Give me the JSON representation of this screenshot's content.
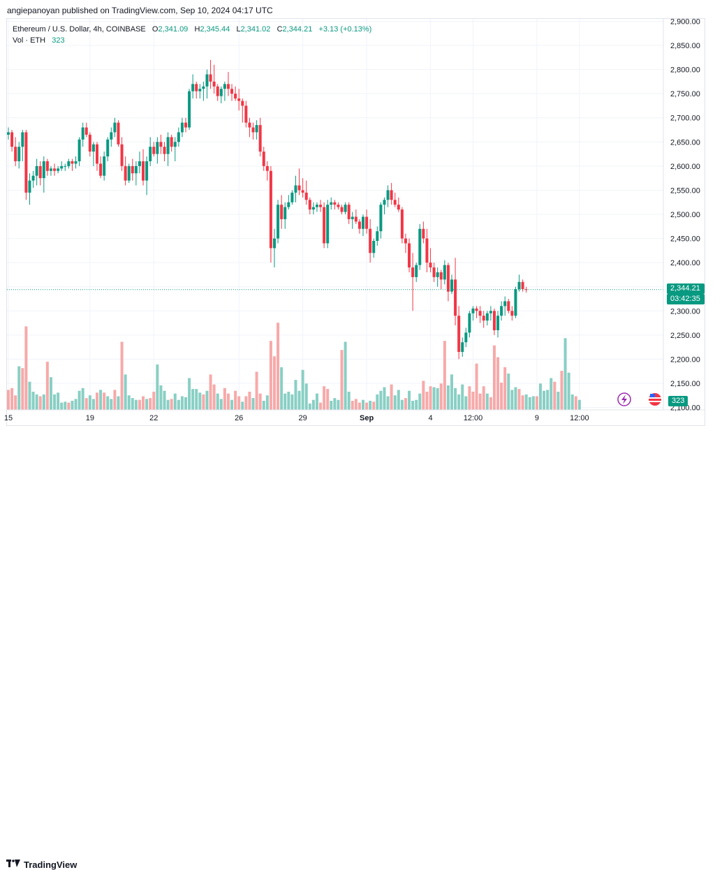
{
  "publisher_line": "angiepanoyan published on TradingView.com, Sep 10, 2024 04:17 UTC",
  "legend": {
    "symbol": "Ethereum / U.S. Dollar, 4h, COINBASE",
    "open_label": "O",
    "open": "2,341.09",
    "high_label": "H",
    "high": "2,345.44",
    "low_label": "L",
    "low": "2,341.02",
    "close_label": "C",
    "close": "2,344.21",
    "change": "+3.13 (+0.13%)",
    "vol_label": "Vol · ETH",
    "vol_value": "323"
  },
  "price_badge": {
    "price": "2,344.21",
    "countdown": "03:42:35"
  },
  "volume_badge": "323",
  "brand": "TradingView",
  "colors": {
    "up": "#089981",
    "down": "#f23645",
    "up_vol": "#89cfc4",
    "down_vol": "#f7a9a9"
  },
  "chart_data": {
    "type": "candlestick",
    "title": "Ethereum / U.S. Dollar, 4h, COINBASE",
    "ylim": [
      2095,
      2905
    ],
    "y_ticks": [
      "2,100.00",
      "2,150.00",
      "2,200.00",
      "2,250.00",
      "2,300.00",
      "2,350.00",
      "2,400.00",
      "2,450.00",
      "2,500.00",
      "2,550.00",
      "2,600.00",
      "2,650.00",
      "2,700.00",
      "2,750.00",
      "2,800.00",
      "2,850.00",
      "2,900.00"
    ],
    "y_tick_values": [
      2100,
      2150,
      2200,
      2250,
      2300,
      2350,
      2400,
      2450,
      2500,
      2550,
      2600,
      2650,
      2700,
      2750,
      2800,
      2850,
      2900
    ],
    "x_ticks": [
      {
        "label": "15",
        "index": 0
      },
      {
        "label": "19",
        "index": 23
      },
      {
        "label": "22",
        "index": 41
      },
      {
        "label": "26",
        "index": 65
      },
      {
        "label": "29",
        "index": 83
      },
      {
        "label": "Sep",
        "index": 101
      },
      {
        "label": "4",
        "index": 119
      },
      {
        "label": "12:00",
        "index": 131
      },
      {
        "label": "9",
        "index": 149
      },
      {
        "label": "12:00",
        "index": 161
      }
    ],
    "last_price": 2344.21,
    "candles": [
      [
        2665,
        2680,
        2655,
        2670
      ],
      [
        2670,
        2675,
        2630,
        2640
      ],
      [
        2640,
        2660,
        2600,
        2610
      ],
      [
        2610,
        2650,
        2595,
        2640
      ],
      [
        2640,
        2675,
        2610,
        2670
      ],
      [
        2670,
        2675,
        2530,
        2545
      ],
      [
        2545,
        2585,
        2520,
        2570
      ],
      [
        2570,
        2590,
        2555,
        2580
      ],
      [
        2580,
        2615,
        2560,
        2600
      ],
      [
        2600,
        2610,
        2560,
        2575
      ],
      [
        2575,
        2620,
        2545,
        2610
      ],
      [
        2610,
        2615,
        2580,
        2590
      ],
      [
        2590,
        2600,
        2580,
        2595
      ],
      [
        2595,
        2605,
        2580,
        2590
      ],
      [
        2590,
        2600,
        2585,
        2595
      ],
      [
        2595,
        2610,
        2590,
        2600
      ],
      [
        2600,
        2605,
        2590,
        2600
      ],
      [
        2600,
        2615,
        2595,
        2610
      ],
      [
        2610,
        2615,
        2590,
        2605
      ],
      [
        2605,
        2620,
        2595,
        2610
      ],
      [
        2610,
        2660,
        2600,
        2655
      ],
      [
        2655,
        2690,
        2640,
        2680
      ],
      [
        2680,
        2690,
        2660,
        2665
      ],
      [
        2665,
        2670,
        2620,
        2630
      ],
      [
        2630,
        2650,
        2600,
        2645
      ],
      [
        2645,
        2650,
        2590,
        2605
      ],
      [
        2605,
        2620,
        2575,
        2580
      ],
      [
        2580,
        2630,
        2570,
        2620
      ],
      [
        2620,
        2660,
        2610,
        2655
      ],
      [
        2655,
        2680,
        2640,
        2670
      ],
      [
        2670,
        2700,
        2660,
        2690
      ],
      [
        2690,
        2695,
        2640,
        2645
      ],
      [
        2645,
        2660,
        2590,
        2600
      ],
      [
        2600,
        2620,
        2560,
        2570
      ],
      [
        2570,
        2605,
        2565,
        2600
      ],
      [
        2600,
        2615,
        2570,
        2585
      ],
      [
        2585,
        2610,
        2560,
        2600
      ],
      [
        2600,
        2630,
        2585,
        2610
      ],
      [
        2610,
        2635,
        2560,
        2570
      ],
      [
        2570,
        2620,
        2540,
        2610
      ],
      [
        2610,
        2660,
        2600,
        2640
      ],
      [
        2640,
        2650,
        2620,
        2625
      ],
      [
        2625,
        2660,
        2605,
        2650
      ],
      [
        2650,
        2665,
        2625,
        2640
      ],
      [
        2640,
        2650,
        2610,
        2625
      ],
      [
        2625,
        2670,
        2600,
        2660
      ],
      [
        2660,
        2665,
        2630,
        2640
      ],
      [
        2640,
        2660,
        2610,
        2650
      ],
      [
        2650,
        2680,
        2640,
        2670
      ],
      [
        2670,
        2700,
        2660,
        2690
      ],
      [
        2690,
        2700,
        2670,
        2680
      ],
      [
        2680,
        2760,
        2675,
        2755
      ],
      [
        2755,
        2790,
        2740,
        2770
      ],
      [
        2770,
        2775,
        2740,
        2755
      ],
      [
        2755,
        2770,
        2740,
        2760
      ],
      [
        2760,
        2775,
        2735,
        2765
      ],
      [
        2765,
        2800,
        2740,
        2790
      ],
      [
        2790,
        2820,
        2760,
        2775
      ],
      [
        2775,
        2810,
        2750,
        2765
      ],
      [
        2765,
        2770,
        2735,
        2745
      ],
      [
        2745,
        2765,
        2730,
        2760
      ],
      [
        2760,
        2775,
        2735,
        2770
      ],
      [
        2770,
        2795,
        2745,
        2760
      ],
      [
        2760,
        2770,
        2735,
        2750
      ],
      [
        2750,
        2765,
        2735,
        2740
      ],
      [
        2740,
        2760,
        2715,
        2735
      ],
      [
        2735,
        2740,
        2690,
        2725
      ],
      [
        2725,
        2735,
        2680,
        2690
      ],
      [
        2690,
        2700,
        2660,
        2680
      ],
      [
        2680,
        2690,
        2655,
        2670
      ],
      [
        2670,
        2695,
        2655,
        2685
      ],
      [
        2685,
        2700,
        2620,
        2630
      ],
      [
        2630,
        2640,
        2590,
        2600
      ],
      [
        2600,
        2610,
        2570,
        2590
      ],
      [
        2590,
        2600,
        2400,
        2430
      ],
      [
        2430,
        2470,
        2390,
        2450
      ],
      [
        2450,
        2530,
        2440,
        2520
      ],
      [
        2520,
        2540,
        2470,
        2490
      ],
      [
        2490,
        2525,
        2470,
        2515
      ],
      [
        2515,
        2540,
        2510,
        2525
      ],
      [
        2525,
        2550,
        2520,
        2545
      ],
      [
        2545,
        2580,
        2525,
        2560
      ],
      [
        2560,
        2595,
        2540,
        2550
      ],
      [
        2550,
        2575,
        2535,
        2545
      ],
      [
        2545,
        2570,
        2520,
        2530
      ],
      [
        2530,
        2535,
        2500,
        2510
      ],
      [
        2510,
        2525,
        2500,
        2515
      ],
      [
        2515,
        2525,
        2505,
        2520
      ],
      [
        2520,
        2530,
        2505,
        2515
      ],
      [
        2515,
        2525,
        2430,
        2440
      ],
      [
        2440,
        2530,
        2430,
        2520
      ],
      [
        2520,
        2535,
        2510,
        2525
      ],
      [
        2525,
        2530,
        2510,
        2520
      ],
      [
        2520,
        2525,
        2510,
        2515
      ],
      [
        2515,
        2520,
        2500,
        2505
      ],
      [
        2505,
        2525,
        2500,
        2520
      ],
      [
        2520,
        2525,
        2480,
        2490
      ],
      [
        2490,
        2505,
        2470,
        2495
      ],
      [
        2495,
        2510,
        2480,
        2485
      ],
      [
        2485,
        2490,
        2460,
        2470
      ],
      [
        2470,
        2500,
        2455,
        2495
      ],
      [
        2495,
        2510,
        2460,
        2470
      ],
      [
        2470,
        2490,
        2400,
        2420
      ],
      [
        2420,
        2450,
        2410,
        2445
      ],
      [
        2445,
        2475,
        2435,
        2465
      ],
      [
        2465,
        2525,
        2450,
        2520
      ],
      [
        2520,
        2535,
        2500,
        2530
      ],
      [
        2530,
        2560,
        2515,
        2550
      ],
      [
        2550,
        2565,
        2520,
        2530
      ],
      [
        2530,
        2545,
        2515,
        2520
      ],
      [
        2520,
        2535,
        2505,
        2510
      ],
      [
        2510,
        2515,
        2440,
        2450
      ],
      [
        2450,
        2460,
        2420,
        2440
      ],
      [
        2440,
        2450,
        2380,
        2390
      ],
      [
        2390,
        2420,
        2300,
        2370
      ],
      [
        2370,
        2400,
        2360,
        2395
      ],
      [
        2395,
        2480,
        2385,
        2470
      ],
      [
        2470,
        2485,
        2440,
        2450
      ],
      [
        2450,
        2470,
        2380,
        2400
      ],
      [
        2400,
        2430,
        2380,
        2390
      ],
      [
        2390,
        2400,
        2360,
        2370
      ],
      [
        2370,
        2390,
        2350,
        2380
      ],
      [
        2380,
        2385,
        2345,
        2365
      ],
      [
        2365,
        2405,
        2355,
        2395
      ],
      [
        2395,
        2400,
        2320,
        2340
      ],
      [
        2340,
        2375,
        2335,
        2365
      ],
      [
        2365,
        2410,
        2270,
        2290
      ],
      [
        2290,
        2310,
        2200,
        2215
      ],
      [
        2215,
        2245,
        2205,
        2235
      ],
      [
        2235,
        2265,
        2225,
        2255
      ],
      [
        2255,
        2300,
        2245,
        2295
      ],
      [
        2295,
        2310,
        2280,
        2305
      ],
      [
        2305,
        2310,
        2285,
        2300
      ],
      [
        2300,
        2310,
        2275,
        2290
      ],
      [
        2290,
        2300,
        2265,
        2280
      ],
      [
        2280,
        2300,
        2270,
        2295
      ],
      [
        2295,
        2310,
        2280,
        2300
      ],
      [
        2300,
        2305,
        2250,
        2260
      ],
      [
        2260,
        2300,
        2245,
        2290
      ],
      [
        2290,
        2320,
        2280,
        2310
      ],
      [
        2310,
        2330,
        2290,
        2320
      ],
      [
        2320,
        2325,
        2295,
        2300
      ],
      [
        2300,
        2310,
        2280,
        2290
      ],
      [
        2290,
        2350,
        2285,
        2345
      ],
      [
        2345,
        2375,
        2340,
        2360
      ],
      [
        2360,
        2365,
        2340,
        2345
      ],
      [
        2345,
        2350,
        2338,
        2344
      ]
    ],
    "volumes": [
      [
        0.22,
        "d"
      ],
      [
        0.24,
        "d"
      ],
      [
        0.16,
        "d"
      ],
      [
        0.48,
        "u"
      ],
      [
        0.46,
        "d"
      ],
      [
        0.92,
        "d"
      ],
      [
        0.31,
        "u"
      ],
      [
        0.2,
        "u"
      ],
      [
        0.17,
        "u"
      ],
      [
        0.15,
        "d"
      ],
      [
        0.17,
        "u"
      ],
      [
        0.53,
        "d"
      ],
      [
        0.36,
        "u"
      ],
      [
        0.17,
        "u"
      ],
      [
        0.19,
        "u"
      ],
      [
        0.08,
        "u"
      ],
      [
        0.09,
        "u"
      ],
      [
        0.08,
        "d"
      ],
      [
        0.1,
        "u"
      ],
      [
        0.12,
        "u"
      ],
      [
        0.21,
        "u"
      ],
      [
        0.24,
        "u"
      ],
      [
        0.13,
        "d"
      ],
      [
        0.16,
        "u"
      ],
      [
        0.12,
        "u"
      ],
      [
        0.19,
        "d"
      ],
      [
        0.22,
        "u"
      ],
      [
        0.19,
        "d"
      ],
      [
        0.15,
        "u"
      ],
      [
        0.12,
        "u"
      ],
      [
        0.22,
        "d"
      ],
      [
        0.15,
        "u"
      ],
      [
        0.75,
        "d"
      ],
      [
        0.39,
        "u"
      ],
      [
        0.16,
        "u"
      ],
      [
        0.13,
        "u"
      ],
      [
        0.11,
        "u"
      ],
      [
        0.11,
        "d"
      ],
      [
        0.15,
        "d"
      ],
      [
        0.12,
        "u"
      ],
      [
        0.13,
        "d"
      ],
      [
        0.2,
        "d"
      ],
      [
        0.5,
        "u"
      ],
      [
        0.27,
        "u"
      ],
      [
        0.21,
        "u"
      ],
      [
        0.11,
        "u"
      ],
      [
        0.12,
        "d"
      ],
      [
        0.18,
        "u"
      ],
      [
        0.11,
        "u"
      ],
      [
        0.15,
        "u"
      ],
      [
        0.14,
        "u"
      ],
      [
        0.35,
        "u"
      ],
      [
        0.23,
        "u"
      ],
      [
        0.23,
        "u"
      ],
      [
        0.19,
        "u"
      ],
      [
        0.17,
        "d"
      ],
      [
        0.21,
        "u"
      ],
      [
        0.39,
        "d"
      ],
      [
        0.28,
        "d"
      ],
      [
        0.18,
        "u"
      ],
      [
        0.12,
        "u"
      ],
      [
        0.24,
        "d"
      ],
      [
        0.18,
        "d"
      ],
      [
        0.11,
        "u"
      ],
      [
        0.21,
        "d"
      ],
      [
        0.15,
        "d"
      ],
      [
        0.09,
        "u"
      ],
      [
        0.15,
        "d"
      ],
      [
        0.2,
        "d"
      ],
      [
        0.13,
        "u"
      ],
      [
        0.42,
        "d"
      ],
      [
        0.18,
        "d"
      ],
      [
        0.1,
        "u"
      ],
      [
        0.16,
        "u"
      ],
      [
        0.76,
        "d"
      ],
      [
        0.59,
        "d"
      ],
      [
        0.96,
        "d"
      ],
      [
        0.47,
        "u"
      ],
      [
        0.18,
        "u"
      ],
      [
        0.2,
        "u"
      ],
      [
        0.17,
        "u"
      ],
      [
        0.33,
        "u"
      ],
      [
        0.21,
        "u"
      ],
      [
        0.44,
        "u"
      ],
      [
        0.29,
        "u"
      ],
      [
        0.07,
        "u"
      ],
      [
        0.11,
        "u"
      ],
      [
        0.18,
        "u"
      ],
      [
        0.08,
        "d"
      ],
      [
        0.26,
        "d"
      ],
      [
        0.23,
        "d"
      ],
      [
        0.1,
        "u"
      ],
      [
        0.13,
        "u"
      ],
      [
        0.11,
        "u"
      ],
      [
        0.66,
        "d"
      ],
      [
        0.75,
        "u"
      ],
      [
        0.2,
        "u"
      ],
      [
        0.1,
        "d"
      ],
      [
        0.12,
        "d"
      ],
      [
        0.08,
        "d"
      ],
      [
        0.11,
        "u"
      ],
      [
        0.08,
        "d"
      ],
      [
        0.1,
        "u"
      ],
      [
        0.09,
        "d"
      ],
      [
        0.17,
        "u"
      ],
      [
        0.21,
        "u"
      ],
      [
        0.25,
        "u"
      ],
      [
        0.15,
        "u"
      ],
      [
        0.28,
        "d"
      ],
      [
        0.16,
        "u"
      ],
      [
        0.22,
        "u"
      ],
      [
        0.11,
        "u"
      ],
      [
        0.13,
        "d"
      ],
      [
        0.21,
        "u"
      ],
      [
        0.1,
        "u"
      ],
      [
        0.11,
        "u"
      ],
      [
        0.18,
        "u"
      ],
      [
        0.32,
        "d"
      ],
      [
        0.2,
        "d"
      ],
      [
        0.26,
        "d"
      ],
      [
        0.25,
        "u"
      ],
      [
        0.24,
        "u"
      ],
      [
        0.29,
        "d"
      ],
      [
        0.76,
        "d"
      ],
      [
        0.27,
        "u"
      ],
      [
        0.39,
        "u"
      ],
      [
        0.24,
        "u"
      ],
      [
        0.17,
        "u"
      ],
      [
        0.28,
        "u"
      ],
      [
        0.15,
        "u"
      ],
      [
        0.26,
        "d"
      ],
      [
        0.2,
        "d"
      ],
      [
        0.51,
        "d"
      ],
      [
        0.18,
        "d"
      ],
      [
        0.26,
        "d"
      ],
      [
        0.18,
        "u"
      ],
      [
        0.14,
        "d"
      ],
      [
        0.71,
        "d"
      ],
      [
        0.58,
        "d"
      ],
      [
        0.3,
        "d"
      ],
      [
        0.47,
        "d"
      ],
      [
        0.4,
        "u"
      ],
      [
        0.22,
        "u"
      ],
      [
        0.25,
        "u"
      ],
      [
        0.23,
        "d"
      ],
      [
        0.16,
        "d"
      ],
      [
        0.17,
        "u"
      ],
      [
        0.14,
        "u"
      ],
      [
        0.15,
        "u"
      ],
      [
        0.15,
        "d"
      ],
      [
        0.29,
        "u"
      ],
      [
        0.21,
        "u"
      ],
      [
        0.22,
        "u"
      ],
      [
        0.35,
        "u"
      ],
      [
        0.31,
        "d"
      ],
      [
        0.2,
        "u"
      ],
      [
        0.43,
        "d"
      ],
      [
        0.79,
        "u"
      ],
      [
        0.41,
        "u"
      ],
      [
        0.17,
        "u"
      ],
      [
        0.15,
        "d"
      ],
      [
        0.11,
        "u"
      ]
    ]
  }
}
